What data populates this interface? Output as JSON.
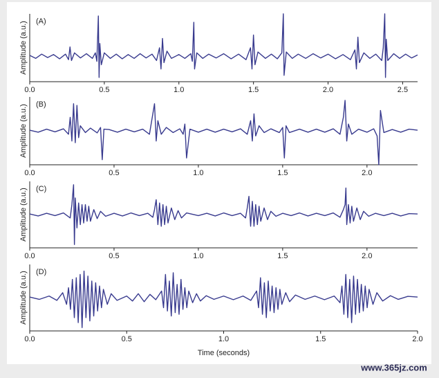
{
  "chart_data": [
    {
      "type": "line",
      "label": "(A)",
      "ylabel": "Amplitude (a.u.)",
      "color": "#383a8e",
      "xlim": [
        0,
        2.6
      ],
      "ylim": [
        -0.6,
        1.0
      ],
      "xticks": [
        {
          "value": 0,
          "label": "0.0"
        },
        0.5,
        {
          "value": 1,
          "label": "1.0"
        },
        1.5,
        {
          "value": 2,
          "label": "2.0"
        },
        2.5
      ],
      "x": [
        0,
        0.04,
        0.08,
        0.12,
        0.16,
        0.2,
        0.24,
        0.26,
        0.27,
        0.28,
        0.3,
        0.34,
        0.38,
        0.42,
        0.44,
        0.45,
        0.46,
        0.465,
        0.47,
        0.48,
        0.5,
        0.54,
        0.58,
        0.62,
        0.66,
        0.7,
        0.74,
        0.78,
        0.82,
        0.85,
        0.87,
        0.88,
        0.89,
        0.9,
        0.92,
        0.95,
        1,
        1.04,
        1.08,
        1.09,
        1.1,
        1.105,
        1.12,
        1.16,
        1.2,
        1.25,
        1.3,
        1.35,
        1.4,
        1.45,
        1.48,
        1.49,
        1.5,
        1.51,
        1.53,
        1.58,
        1.62,
        1.66,
        1.69,
        1.7,
        1.705,
        1.72,
        1.76,
        1.8,
        1.85,
        1.9,
        1.95,
        2,
        2.05,
        2.1,
        2.15,
        2.18,
        2.19,
        2.2,
        2.21,
        2.24,
        2.28,
        2.32,
        2.36,
        2.37,
        2.38,
        2.385,
        2.39,
        2.4,
        2.44,
        2.48,
        2.52,
        2.56,
        2.6
      ],
      "values": [
        0.02,
        -0.05,
        0.05,
        -0.03,
        0.04,
        -0.06,
        0.05,
        -0.08,
        0.22,
        -0.1,
        0.08,
        -0.04,
        0.06,
        -0.05,
        0.08,
        -0.12,
        0.95,
        -0.5,
        0.3,
        -0.2,
        0.08,
        -0.05,
        0.05,
        -0.06,
        0.04,
        -0.05,
        0.06,
        -0.04,
        0.05,
        -0.1,
        0.2,
        -0.3,
        0.42,
        -0.15,
        0.12,
        -0.05,
        0.04,
        -0.05,
        0.06,
        -0.12,
        0.8,
        -0.3,
        0.08,
        -0.05,
        0.05,
        -0.04,
        0.06,
        -0.06,
        0.05,
        -0.08,
        0.2,
        -0.3,
        0.5,
        -0.2,
        0.1,
        -0.05,
        0.05,
        -0.06,
        0.08,
        1.0,
        -0.45,
        0.1,
        -0.05,
        0.05,
        -0.05,
        0.06,
        -0.04,
        0.05,
        -0.06,
        0.04,
        -0.08,
        0.15,
        -0.3,
        0.45,
        -0.15,
        0.08,
        -0.05,
        0.05,
        -0.1,
        0.2,
        1.0,
        -0.5,
        0.4,
        -0.1,
        0.06,
        -0.05,
        0.05,
        -0.04,
        0.03
      ]
    },
    {
      "type": "line",
      "label": "(B)",
      "ylabel": "Amplitude (a.u.)",
      "color": "#383a8e",
      "xlim": [
        0,
        2.3
      ],
      "ylim": [
        -1,
        1
      ],
      "xticks": [
        {
          "value": 0,
          "label": "0.0"
        },
        0.5,
        {
          "value": 1,
          "label": "1.0"
        },
        1.5,
        {
          "value": 2,
          "label": "2.0"
        }
      ],
      "x": [
        0,
        0.05,
        0.1,
        0.15,
        0.2,
        0.23,
        0.24,
        0.25,
        0.26,
        0.27,
        0.28,
        0.29,
        0.3,
        0.33,
        0.36,
        0.4,
        0.42,
        0.43,
        0.44,
        0.47,
        0.52,
        0.57,
        0.62,
        0.67,
        0.71,
        0.73,
        0.74,
        0.75,
        0.76,
        0.78,
        0.81,
        0.85,
        0.89,
        0.91,
        0.92,
        0.93,
        0.95,
        1.0,
        1.05,
        1.1,
        1.15,
        1.2,
        1.25,
        1.29,
        1.31,
        1.32,
        1.33,
        1.34,
        1.36,
        1.39,
        1.43,
        1.48,
        1.5,
        1.51,
        1.52,
        1.54,
        1.6,
        1.65,
        1.7,
        1.75,
        1.8,
        1.84,
        1.86,
        1.87,
        1.88,
        1.89,
        1.91,
        1.95,
        2.0,
        2.04,
        2.06,
        2.07,
        2.08,
        2.1,
        2.15,
        2.2,
        2.25,
        2.3
      ],
      "values": [
        0.02,
        -0.04,
        0.05,
        -0.03,
        0.06,
        -0.1,
        0.4,
        -0.3,
        0.8,
        -0.35,
        0.75,
        -0.2,
        0.15,
        -0.05,
        0.08,
        -0.06,
        0.1,
        -0.85,
        0.05,
        0.04,
        -0.04,
        0.05,
        -0.03,
        0.05,
        -0.1,
        0.5,
        0.8,
        -0.3,
        0.3,
        -0.1,
        0.1,
        -0.05,
        0.06,
        -0.1,
        0.2,
        -0.8,
        0.05,
        -0.04,
        0.05,
        -0.04,
        0.05,
        -0.03,
        0.06,
        -0.1,
        0.3,
        -0.3,
        0.5,
        -0.15,
        0.15,
        -0.05,
        0.06,
        -0.05,
        0.1,
        -0.8,
        0.15,
        -0.05,
        0.05,
        -0.04,
        0.05,
        -0.04,
        0.06,
        -0.1,
        0.4,
        0.9,
        -0.3,
        0.2,
        -0.1,
        0.05,
        -0.04,
        0.06,
        -0.15,
        -1.0,
        0.6,
        -0.05,
        0.04,
        -0.04,
        0.05,
        0.02
      ]
    },
    {
      "type": "line",
      "label": "(C)",
      "ylabel": "Amplitude (a.u.)",
      "color": "#383a8e",
      "xlim": [
        0,
        2.3
      ],
      "ylim": [
        -1,
        1
      ],
      "xticks": [
        {
          "value": 0,
          "label": "0.0"
        },
        0.5,
        {
          "value": 1,
          "label": "1.0"
        },
        1.5,
        {
          "value": 2,
          "label": "2.0"
        }
      ],
      "x": [
        0,
        0.05,
        0.1,
        0.15,
        0.2,
        0.24,
        0.25,
        0.26,
        0.265,
        0.27,
        0.28,
        0.29,
        0.3,
        0.31,
        0.32,
        0.33,
        0.34,
        0.35,
        0.36,
        0.38,
        0.4,
        0.42,
        0.45,
        0.5,
        0.55,
        0.6,
        0.65,
        0.7,
        0.73,
        0.74,
        0.75,
        0.76,
        0.77,
        0.78,
        0.79,
        0.8,
        0.81,
        0.82,
        0.84,
        0.86,
        0.88,
        0.9,
        0.93,
        1.0,
        1.05,
        1.1,
        1.15,
        1.2,
        1.25,
        1.28,
        1.29,
        1.3,
        1.31,
        1.32,
        1.33,
        1.34,
        1.35,
        1.36,
        1.37,
        1.39,
        1.41,
        1.43,
        1.46,
        1.5,
        1.55,
        1.6,
        1.65,
        1.7,
        1.75,
        1.8,
        1.84,
        1.86,
        1.87,
        1.875,
        1.88,
        1.89,
        1.9,
        1.91,
        1.92,
        1.94,
        1.96,
        1.98,
        2.01,
        2.05,
        2.1,
        2.15,
        2.2,
        2.25,
        2.3
      ],
      "values": [
        0.02,
        -0.04,
        0.04,
        -0.03,
        0.05,
        -0.1,
        0.3,
        0.9,
        -0.9,
        0.5,
        -0.4,
        0.35,
        -0.3,
        0.3,
        -0.25,
        0.3,
        -0.2,
        0.25,
        -0.2,
        0.15,
        -0.12,
        0.1,
        -0.05,
        0.04,
        -0.04,
        0.05,
        -0.03,
        0.04,
        -0.08,
        0.15,
        0.45,
        -0.3,
        0.35,
        -0.35,
        0.3,
        -0.3,
        0.25,
        -0.25,
        0.2,
        -0.15,
        0.12,
        -0.1,
        0.05,
        -0.03,
        0.04,
        -0.04,
        0.05,
        -0.03,
        0.04,
        -0.1,
        0.2,
        0.55,
        -0.35,
        0.4,
        -0.35,
        0.3,
        -0.3,
        0.25,
        -0.2,
        0.2,
        -0.15,
        0.1,
        -0.05,
        0.04,
        -0.03,
        0.05,
        -0.04,
        0.04,
        -0.03,
        0.05,
        -0.08,
        0.15,
        0.3,
        0.8,
        -0.3,
        0.3,
        -0.25,
        0.25,
        -0.2,
        0.2,
        -0.15,
        0.1,
        -0.05,
        0.04,
        -0.03,
        0.04,
        -0.04,
        0.03,
        0.02
      ]
    },
    {
      "type": "line",
      "label": "(D)",
      "ylabel": "Amplitude (a.u.)",
      "xlabel": "Time (seconds)",
      "color": "#383a8e",
      "xlim": [
        0,
        2.0
      ],
      "ylim": [
        -1,
        1
      ],
      "xticks": [
        {
          "value": 0,
          "label": "0.0"
        },
        0.5,
        {
          "value": 1,
          "label": "1.0"
        },
        1.5,
        {
          "value": 2,
          "label": "2.0"
        }
      ],
      "x": [
        0,
        0.05,
        0.1,
        0.14,
        0.17,
        0.19,
        0.2,
        0.21,
        0.22,
        0.23,
        0.24,
        0.25,
        0.26,
        0.27,
        0.28,
        0.29,
        0.3,
        0.31,
        0.32,
        0.33,
        0.34,
        0.35,
        0.36,
        0.37,
        0.38,
        0.4,
        0.42,
        0.45,
        0.5,
        0.53,
        0.56,
        0.59,
        0.62,
        0.65,
        0.68,
        0.69,
        0.7,
        0.71,
        0.72,
        0.73,
        0.74,
        0.75,
        0.76,
        0.77,
        0.78,
        0.79,
        0.8,
        0.81,
        0.82,
        0.84,
        0.86,
        0.88,
        0.91,
        0.95,
        1.0,
        1.05,
        1.1,
        1.14,
        1.17,
        1.18,
        1.19,
        1.2,
        1.21,
        1.22,
        1.23,
        1.24,
        1.25,
        1.26,
        1.27,
        1.28,
        1.29,
        1.3,
        1.32,
        1.34,
        1.37,
        1.42,
        1.47,
        1.52,
        1.57,
        1.6,
        1.61,
        1.62,
        1.63,
        1.64,
        1.65,
        1.66,
        1.67,
        1.68,
        1.69,
        1.7,
        1.71,
        1.72,
        1.73,
        1.74,
        1.75,
        1.77,
        1.79,
        1.82,
        1.86,
        1.9,
        1.95,
        2.0
      ],
      "values": [
        0.02,
        -0.05,
        0.05,
        -0.08,
        0.15,
        -0.2,
        0.3,
        -0.35,
        0.55,
        -0.6,
        0.6,
        -0.75,
        0.7,
        -0.9,
        0.8,
        -0.6,
        0.65,
        -0.7,
        0.5,
        -0.55,
        0.45,
        -0.4,
        0.35,
        -0.3,
        0.25,
        -0.2,
        0.12,
        -0.08,
        0.05,
        -0.1,
        0.12,
        -0.12,
        0.1,
        -0.06,
        0.2,
        -0.3,
        0.7,
        -0.4,
        0.5,
        -0.55,
        0.75,
        -0.45,
        0.4,
        -0.5,
        0.55,
        -0.35,
        0.3,
        -0.3,
        0.2,
        -0.15,
        0.12,
        -0.1,
        0.06,
        -0.05,
        0.05,
        -0.06,
        0.05,
        -0.08,
        0.2,
        -0.3,
        0.6,
        -0.5,
        0.45,
        -0.6,
        0.5,
        -0.4,
        0.35,
        -0.45,
        0.3,
        -0.35,
        0.25,
        -0.2,
        0.15,
        -0.12,
        0.08,
        -0.05,
        0.05,
        -0.06,
        0.05,
        -0.15,
        0.35,
        -0.5,
        0.7,
        -0.6,
        0.55,
        -0.75,
        0.65,
        -0.5,
        0.55,
        -0.45,
        0.4,
        -0.4,
        0.35,
        -0.3,
        0.25,
        -0.2,
        0.15,
        -0.1,
        0.06,
        -0.05,
        0.04,
        0.02
      ]
    }
  ],
  "watermark": "www.365jz.com"
}
